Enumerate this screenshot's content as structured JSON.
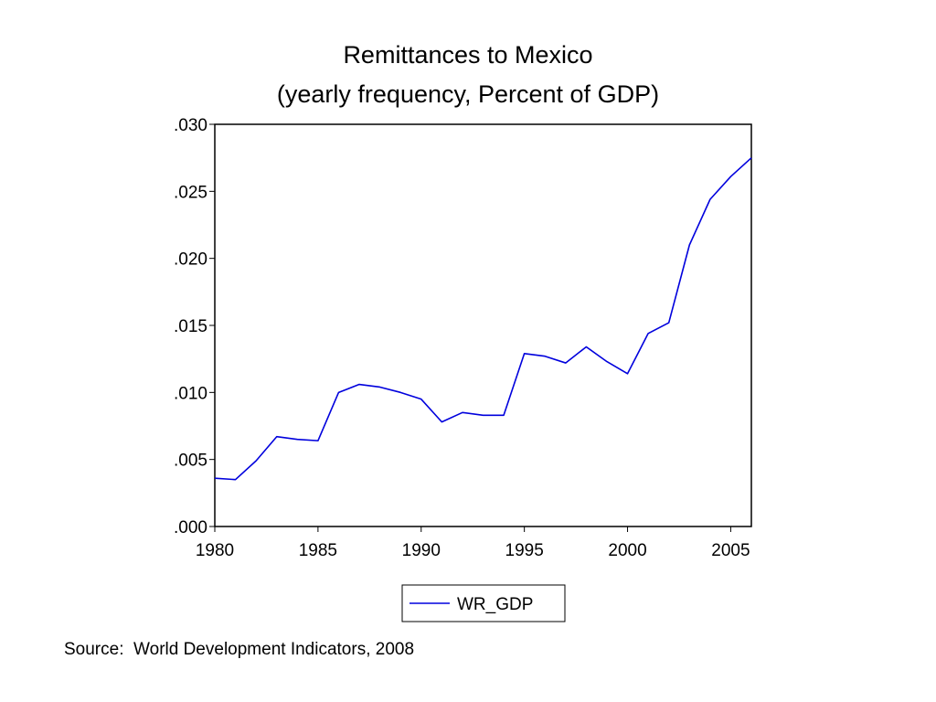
{
  "slide": {
    "title_line1": "Remittances  to Mexico",
    "title_line2": "(yearly frequency,  Percent of GDP)",
    "source": "Source:  World Development Indicators, 2008"
  },
  "chart_data": {
    "type": "line",
    "title": "Remittances  to Mexico (yearly frequency,  Percent of GDP)",
    "xlabel": "",
    "ylabel": "",
    "xlim": [
      1980,
      2006
    ],
    "ylim": [
      0,
      0.03
    ],
    "grid": false,
    "legend_position": "bottom-center",
    "x_ticks": [
      "1980",
      "1985",
      "1990",
      "1995",
      "2000",
      "2005"
    ],
    "y_ticks": [
      ".000",
      ".005",
      ".010",
      ".015",
      ".020",
      ".025",
      ".030"
    ],
    "x_tick_values": [
      1980,
      1985,
      1990,
      1995,
      2000,
      2005
    ],
    "y_tick_values": [
      0,
      0.005,
      0.01,
      0.015,
      0.02,
      0.025,
      0.03
    ],
    "x": [
      1980,
      1981,
      1982,
      1983,
      1984,
      1985,
      1986,
      1987,
      1988,
      1989,
      1990,
      1991,
      1992,
      1993,
      1994,
      1995,
      1996,
      1997,
      1998,
      1999,
      2000,
      2001,
      2002,
      2003,
      2004,
      2005,
      2006
    ],
    "series": [
      {
        "name": "WR_GDP",
        "color": "#0000dd",
        "values": [
          0.0036,
          0.0035,
          0.0049,
          0.0067,
          0.0065,
          0.0064,
          0.01,
          0.0106,
          0.0104,
          0.01,
          0.0095,
          0.0078,
          0.0085,
          0.0083,
          0.0083,
          0.0129,
          0.0127,
          0.0122,
          0.0134,
          0.0123,
          0.0114,
          0.0144,
          0.0152,
          0.021,
          0.0244,
          0.0261,
          0.0275
        ]
      }
    ]
  }
}
